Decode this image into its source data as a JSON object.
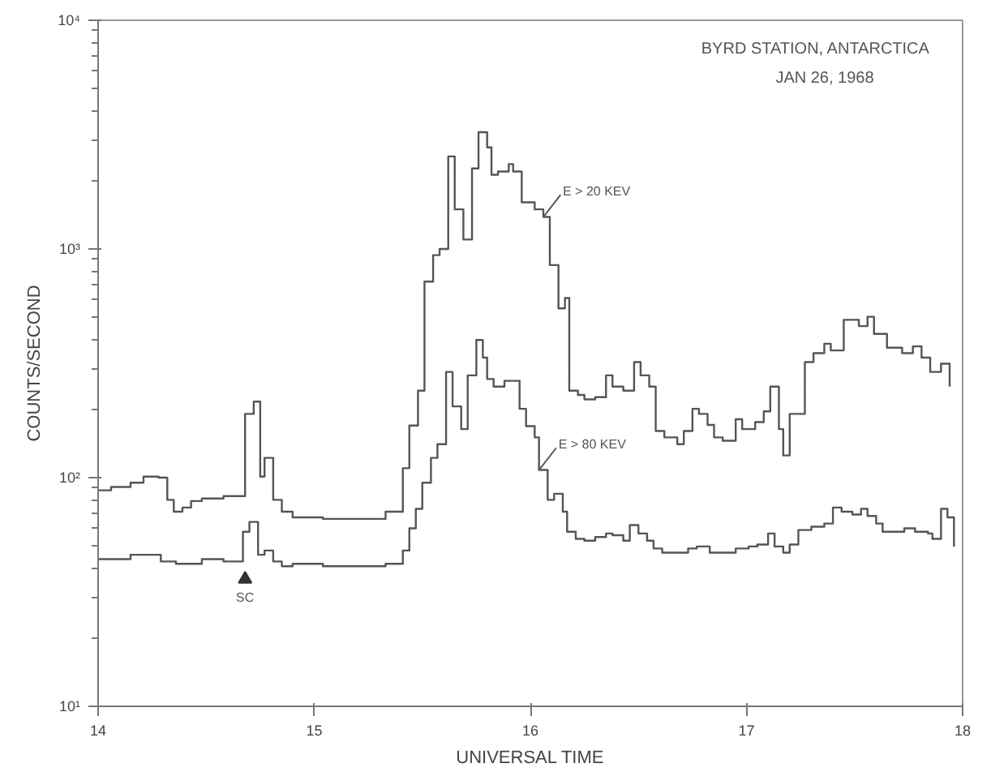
{
  "chart_data": {
    "type": "step",
    "title": "BYRD STATION, ANTARCTICA",
    "subtitle": "JAN 26, 1968",
    "xlabel": "UNIVERSAL TIME",
    "ylabel": "COUNTS/SECOND",
    "log": "y",
    "grid": false,
    "xlim": [
      14,
      18
    ],
    "xticks": [
      14,
      15,
      16,
      17,
      18
    ],
    "ylim": [
      10,
      10000
    ],
    "yticks": [
      {
        "value": 10,
        "label": "10¹"
      },
      {
        "value": 100,
        "label": "10²"
      },
      {
        "value": 1000,
        "label": "10³"
      },
      {
        "value": 10000,
        "label": "10⁴"
      }
    ],
    "series": [
      {
        "name": "E > 20 KEV",
        "color": "#555555",
        "x": [
          14.0,
          14.06,
          14.15,
          14.21,
          14.28,
          14.32,
          14.35,
          14.39,
          14.43,
          14.48,
          14.58,
          14.68,
          14.72,
          14.75,
          14.77,
          14.81,
          14.85,
          14.9,
          15.04,
          15.33,
          15.41,
          15.44,
          15.48,
          15.51,
          15.55,
          15.58,
          15.62,
          15.65,
          15.69,
          15.73,
          15.76,
          15.8,
          15.82,
          15.85,
          15.9,
          15.92,
          15.96,
          16.02,
          16.06,
          16.09,
          16.13,
          16.16,
          16.18,
          16.22,
          16.25,
          16.3,
          16.35,
          16.38,
          16.43,
          16.48,
          16.51,
          16.55,
          16.58,
          16.62,
          16.68,
          16.71,
          16.75,
          16.78,
          16.82,
          16.85,
          16.89,
          16.95,
          16.98,
          17.04,
          17.08,
          17.11,
          17.15,
          17.17,
          17.2,
          17.27,
          17.31,
          17.36,
          17.39,
          17.45,
          17.52,
          17.56,
          17.59,
          17.65,
          17.72,
          17.77,
          17.81,
          17.85,
          17.9,
          17.94
        ],
        "values": [
          88,
          91,
          95,
          101,
          100,
          80,
          71,
          74,
          79,
          81,
          83,
          190,
          215,
          101,
          122,
          80,
          71,
          67,
          66,
          71,
          110,
          169,
          240,
          720,
          940,
          1000,
          2540,
          1490,
          1100,
          2250,
          3240,
          2780,
          2110,
          2180,
          2350,
          2180,
          1600,
          1490,
          1380,
          850,
          550,
          610,
          240,
          230,
          220,
          225,
          280,
          250,
          240,
          320,
          280,
          250,
          160,
          150,
          140,
          160,
          200,
          190,
          170,
          150,
          145,
          180,
          163,
          175,
          195,
          250,
          163,
          125,
          190,
          320,
          350,
          385,
          360,
          490,
          460,
          505,
          425,
          370,
          350,
          375,
          335,
          290,
          315,
          250
        ]
      },
      {
        "name": "E > 80 KEV",
        "color": "#555555",
        "x": [
          14.0,
          14.15,
          14.29,
          14.36,
          14.48,
          14.58,
          14.67,
          14.7,
          14.74,
          14.77,
          14.81,
          14.85,
          14.9,
          15.04,
          15.33,
          15.41,
          15.44,
          15.47,
          15.5,
          15.54,
          15.57,
          15.61,
          15.64,
          15.68,
          15.71,
          15.75,
          15.78,
          15.8,
          15.83,
          15.88,
          15.95,
          15.98,
          16.02,
          16.04,
          16.08,
          16.11,
          16.15,
          16.17,
          16.21,
          16.25,
          16.3,
          16.35,
          16.38,
          16.43,
          16.46,
          16.5,
          16.54,
          16.57,
          16.61,
          16.73,
          16.77,
          16.83,
          16.95,
          17.01,
          17.05,
          17.1,
          17.13,
          17.17,
          17.2,
          17.24,
          17.3,
          17.36,
          17.4,
          17.44,
          17.49,
          17.53,
          17.56,
          17.6,
          17.63,
          17.73,
          17.78,
          17.84,
          17.86,
          17.9,
          17.93,
          17.96
        ],
        "values": [
          44,
          46,
          43,
          42,
          44,
          43,
          58,
          64,
          46,
          48,
          43,
          41,
          42,
          41,
          42,
          48,
          60,
          73,
          95,
          122,
          140,
          290,
          205,
          163,
          280,
          400,
          335,
          270,
          250,
          265,
          200,
          168,
          150,
          108,
          80,
          85,
          71,
          58,
          54,
          53,
          55,
          57,
          56,
          53,
          62,
          57,
          53,
          49,
          47,
          49,
          50,
          47,
          49,
          50,
          51,
          57,
          50,
          47,
          51,
          59,
          61,
          63,
          74,
          71,
          69,
          73,
          68,
          63,
          58,
          60,
          58,
          57,
          54,
          73,
          67,
          50
        ]
      }
    ],
    "annotations": [
      {
        "text": "SC",
        "x": 14.68,
        "y": 36
      }
    ]
  }
}
